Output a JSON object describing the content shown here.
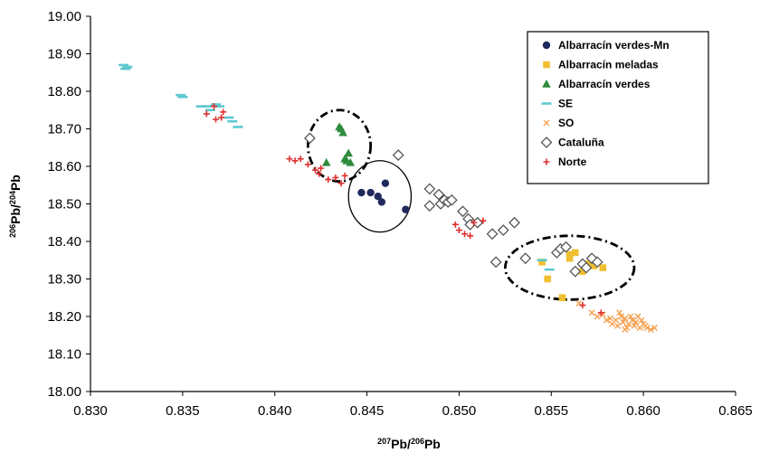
{
  "chart_data": {
    "type": "scatter",
    "xlabel_html": "<tspan baseline-shift='super' font-size='9'>207</tspan>Pb/<tspan baseline-shift='super' font-size='9'>206</tspan>Pb",
    "ylabel_html": "<tspan baseline-shift='super' font-size='9'>206</tspan>Pb/<tspan baseline-shift='super' font-size='9'>204</tspan>Pb",
    "xlim": [
      0.83,
      0.865
    ],
    "ylim": [
      18.0,
      19.0
    ],
    "xticks": [
      "0.830",
      "0.835",
      "0.840",
      "0.845",
      "0.850",
      "0.855",
      "0.860",
      "0.865"
    ],
    "yticks": [
      "18.00",
      "18.10",
      "18.20",
      "18.30",
      "18.40",
      "18.50",
      "18.60",
      "18.70",
      "18.80",
      "18.90",
      "19.00"
    ],
    "grid": false,
    "legend_position": "top-right",
    "series": [
      {
        "name": "Albarracín verdes-Mn",
        "marker": "circle",
        "color": "#1f2a5c",
        "points": [
          [
            0.8447,
            18.53
          ],
          [
            0.8452,
            18.53
          ],
          [
            0.8456,
            18.52
          ],
          [
            0.8458,
            18.505
          ],
          [
            0.846,
            18.555
          ],
          [
            0.8471,
            18.485
          ]
        ]
      },
      {
        "name": "Albarracín meladas",
        "marker": "square",
        "color": "#f0c030",
        "points": [
          [
            0.8545,
            18.345
          ],
          [
            0.8548,
            18.3
          ],
          [
            0.8556,
            18.25
          ],
          [
            0.856,
            18.365
          ],
          [
            0.856,
            18.355
          ],
          [
            0.8563,
            18.37
          ],
          [
            0.8567,
            18.32
          ],
          [
            0.857,
            18.34
          ],
          [
            0.8573,
            18.335
          ],
          [
            0.8578,
            18.33
          ]
        ]
      },
      {
        "name": "Albarracín verdes",
        "marker": "triangle",
        "color": "#2e8b3e",
        "points": [
          [
            0.8428,
            18.61
          ],
          [
            0.8435,
            18.705
          ],
          [
            0.8436,
            18.7
          ],
          [
            0.8437,
            18.69
          ],
          [
            0.8438,
            18.62
          ],
          [
            0.8439,
            18.615
          ],
          [
            0.844,
            18.635
          ],
          [
            0.8441,
            18.61
          ]
        ]
      },
      {
        "name": "SE",
        "marker": "dash",
        "color": "#5cc8d0",
        "points": [
          [
            0.8318,
            18.87
          ],
          [
            0.8319,
            18.86
          ],
          [
            0.832,
            18.865
          ],
          [
            0.8349,
            18.79
          ],
          [
            0.835,
            18.785
          ],
          [
            0.836,
            18.76
          ],
          [
            0.8363,
            18.76
          ],
          [
            0.8365,
            18.75
          ],
          [
            0.8368,
            18.765
          ],
          [
            0.837,
            18.76
          ],
          [
            0.8375,
            18.73
          ],
          [
            0.8377,
            18.72
          ],
          [
            0.838,
            18.705
          ],
          [
            0.8545,
            18.35
          ],
          [
            0.8549,
            18.325
          ]
        ]
      },
      {
        "name": "SO",
        "marker": "x",
        "color": "#f5a050",
        "points": [
          [
            0.8565,
            18.235
          ],
          [
            0.8572,
            18.21
          ],
          [
            0.8575,
            18.2
          ],
          [
            0.8578,
            18.205
          ],
          [
            0.858,
            18.19
          ],
          [
            0.8582,
            18.195
          ],
          [
            0.8583,
            18.18
          ],
          [
            0.8585,
            18.19
          ],
          [
            0.8586,
            18.175
          ],
          [
            0.8587,
            18.21
          ],
          [
            0.8588,
            18.2
          ],
          [
            0.8589,
            18.185
          ],
          [
            0.859,
            18.195
          ],
          [
            0.859,
            18.165
          ],
          [
            0.8591,
            18.17
          ],
          [
            0.8592,
            18.18
          ],
          [
            0.8593,
            18.2
          ],
          [
            0.8594,
            18.19
          ],
          [
            0.8595,
            18.175
          ],
          [
            0.8596,
            18.185
          ],
          [
            0.8597,
            18.2
          ],
          [
            0.8598,
            18.17
          ],
          [
            0.8599,
            18.19
          ],
          [
            0.86,
            18.18
          ],
          [
            0.8601,
            18.175
          ],
          [
            0.8602,
            18.17
          ],
          [
            0.8604,
            18.165
          ],
          [
            0.8606,
            18.17
          ]
        ]
      },
      {
        "name": "Cataluña",
        "marker": "diamond",
        "color": "#555555",
        "points": [
          [
            0.8419,
            18.675
          ],
          [
            0.8467,
            18.63
          ],
          [
            0.8484,
            18.54
          ],
          [
            0.8484,
            18.495
          ],
          [
            0.8489,
            18.525
          ],
          [
            0.849,
            18.5
          ],
          [
            0.8492,
            18.51
          ],
          [
            0.8494,
            18.505
          ],
          [
            0.8496,
            18.51
          ],
          [
            0.8502,
            18.48
          ],
          [
            0.8505,
            18.46
          ],
          [
            0.8506,
            18.445
          ],
          [
            0.851,
            18.45
          ],
          [
            0.8518,
            18.42
          ],
          [
            0.852,
            18.345
          ],
          [
            0.8524,
            18.43
          ],
          [
            0.853,
            18.45
          ],
          [
            0.8536,
            18.355
          ],
          [
            0.8553,
            18.37
          ],
          [
            0.8555,
            18.38
          ],
          [
            0.8558,
            18.385
          ],
          [
            0.8563,
            18.32
          ],
          [
            0.8567,
            18.34
          ],
          [
            0.8569,
            18.33
          ],
          [
            0.8572,
            18.355
          ],
          [
            0.8575,
            18.345
          ]
        ]
      },
      {
        "name": "Norte",
        "marker": "plus",
        "color": "#e03030",
        "points": [
          [
            0.8363,
            18.74
          ],
          [
            0.8367,
            18.76
          ],
          [
            0.8368,
            18.725
          ],
          [
            0.8371,
            18.73
          ],
          [
            0.8372,
            18.745
          ],
          [
            0.8408,
            18.62
          ],
          [
            0.8411,
            18.615
          ],
          [
            0.8414,
            18.62
          ],
          [
            0.8418,
            18.605
          ],
          [
            0.8422,
            18.59
          ],
          [
            0.8424,
            18.58
          ],
          [
            0.8425,
            18.595
          ],
          [
            0.8429,
            18.565
          ],
          [
            0.8433,
            18.57
          ],
          [
            0.8436,
            18.555
          ],
          [
            0.8438,
            18.575
          ],
          [
            0.8498,
            18.445
          ],
          [
            0.85,
            18.43
          ],
          [
            0.8503,
            18.42
          ],
          [
            0.8506,
            18.415
          ],
          [
            0.8508,
            18.45
          ],
          [
            0.8513,
            18.455
          ],
          [
            0.8567,
            18.23
          ],
          [
            0.8577,
            18.21
          ]
        ]
      }
    ],
    "annotations": [
      {
        "shape": "ellipse",
        "style": "dash-dot",
        "cx": 0.8435,
        "cy": 18.655,
        "rx": 0.0017,
        "ry": 0.095
      },
      {
        "shape": "ellipse",
        "style": "solid",
        "cx": 0.8457,
        "cy": 18.52,
        "rx": 0.0017,
        "ry": 0.095
      },
      {
        "shape": "ellipse",
        "style": "dash-dot",
        "cx": 0.856,
        "cy": 18.33,
        "rx": 0.0035,
        "ry": 0.085
      }
    ]
  }
}
